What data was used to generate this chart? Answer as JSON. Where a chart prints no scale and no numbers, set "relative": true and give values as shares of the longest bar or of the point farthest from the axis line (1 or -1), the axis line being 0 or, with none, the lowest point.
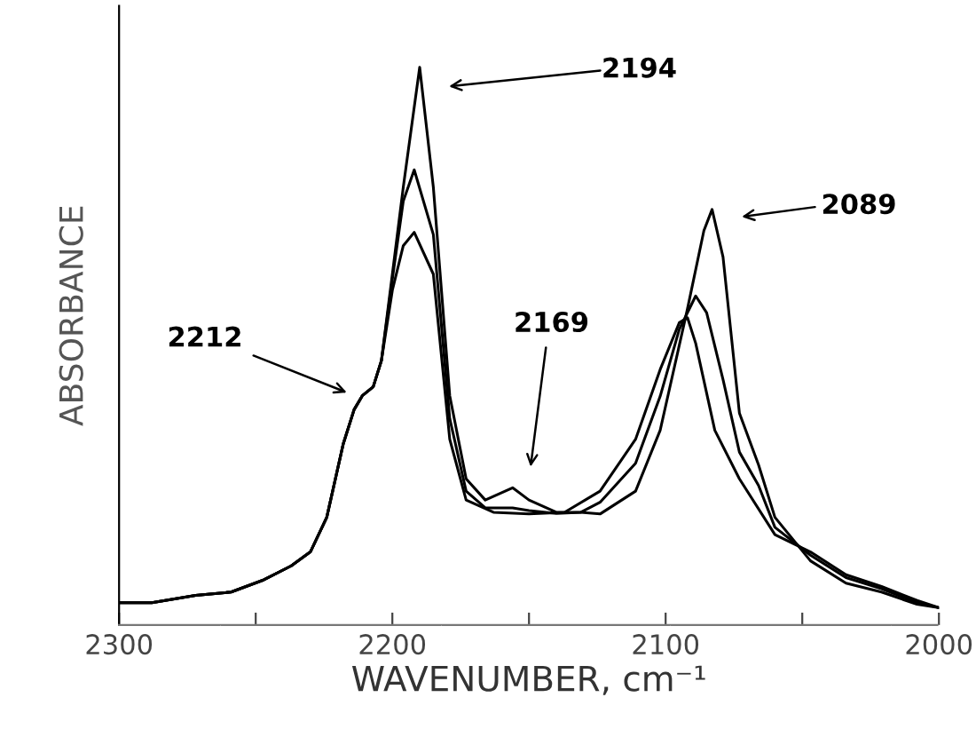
{
  "chart_data": {
    "type": "line",
    "relative": true,
    "xlabel": "WAVENUMBER, cm⁻¹",
    "ylabel": "ABSORBANCE",
    "xlim": [
      2300,
      2000
    ],
    "xticks": [
      2300,
      {
        "value": 2250,
        "label": null
      },
      2200,
      {
        "value": 2150,
        "label": null
      },
      2100,
      {
        "value": 2050,
        "label": null
      },
      2000
    ],
    "grid": false,
    "legend": false,
    "marker": "none",
    "line_style": "solid",
    "series": [
      {
        "color": "#000000",
        "x": [
          2300,
          2288,
          2272,
          2259,
          2247,
          2237,
          2230,
          2224,
          2218,
          2214,
          2211,
          2207,
          2204,
          2200,
          2196,
          2190,
          2185,
          2179,
          2173,
          2166,
          2156,
          2150,
          2140,
          2131,
          2124,
          2111,
          2102,
          2092,
          2086,
          2083,
          2079,
          2073,
          2066,
          2060,
          2047,
          2034,
          2021,
          2008,
          2000
        ],
        "values": [
          0.04,
          0.04,
          0.053,
          0.059,
          0.081,
          0.106,
          0.131,
          0.193,
          0.324,
          0.386,
          0.411,
          0.427,
          0.474,
          0.629,
          0.785,
          1.0,
          0.785,
          0.411,
          0.262,
          0.224,
          0.246,
          0.224,
          0.202,
          0.202,
          0.199,
          0.24,
          0.349,
          0.567,
          0.707,
          0.745,
          0.66,
          0.38,
          0.287,
          0.193,
          0.115,
          0.075,
          0.059,
          0.037,
          0.031
        ]
      },
      {
        "color": "#000000",
        "x": [
          2300,
          2288,
          2272,
          2259,
          2247,
          2237,
          2230,
          2224,
          2218,
          2214,
          2211,
          2207,
          2204,
          2200,
          2196,
          2192,
          2185,
          2179,
          2173,
          2166,
          2156,
          2150,
          2140,
          2131,
          2124,
          2111,
          2102,
          2095,
          2089,
          2085,
          2079,
          2073,
          2066,
          2060,
          2047,
          2034,
          2021,
          2008,
          2000
        ],
        "values": [
          0.04,
          0.04,
          0.053,
          0.059,
          0.081,
          0.106,
          0.131,
          0.193,
          0.324,
          0.386,
          0.411,
          0.427,
          0.474,
          0.62,
          0.76,
          0.816,
          0.7,
          0.37,
          0.24,
          0.21,
          0.21,
          0.205,
          0.2,
          0.202,
          0.22,
          0.29,
          0.41,
          0.53,
          0.59,
          0.56,
          0.44,
          0.31,
          0.25,
          0.175,
          0.125,
          0.085,
          0.065,
          0.04,
          0.031
        ]
      },
      {
        "color": "#000000",
        "x": [
          2300,
          2288,
          2272,
          2259,
          2247,
          2237,
          2230,
          2224,
          2218,
          2214,
          2211,
          2207,
          2204,
          2200,
          2196,
          2192,
          2185,
          2179,
          2173,
          2163,
          2150,
          2137,
          2124,
          2111,
          2102,
          2095,
          2092,
          2089,
          2082,
          2073,
          2060,
          2047,
          2034,
          2021,
          2008,
          2000
        ],
        "values": [
          0.04,
          0.04,
          0.053,
          0.059,
          0.081,
          0.106,
          0.131,
          0.193,
          0.324,
          0.386,
          0.411,
          0.427,
          0.474,
          0.6,
          0.68,
          0.704,
          0.629,
          0.333,
          0.224,
          0.202,
          0.199,
          0.202,
          0.24,
          0.333,
          0.458,
          0.542,
          0.551,
          0.505,
          0.349,
          0.262,
          0.162,
          0.131,
          0.09,
          0.069,
          0.044,
          0.031
        ]
      }
    ],
    "annotations": [
      "2194",
      "2212",
      "2169",
      "2089"
    ]
  }
}
